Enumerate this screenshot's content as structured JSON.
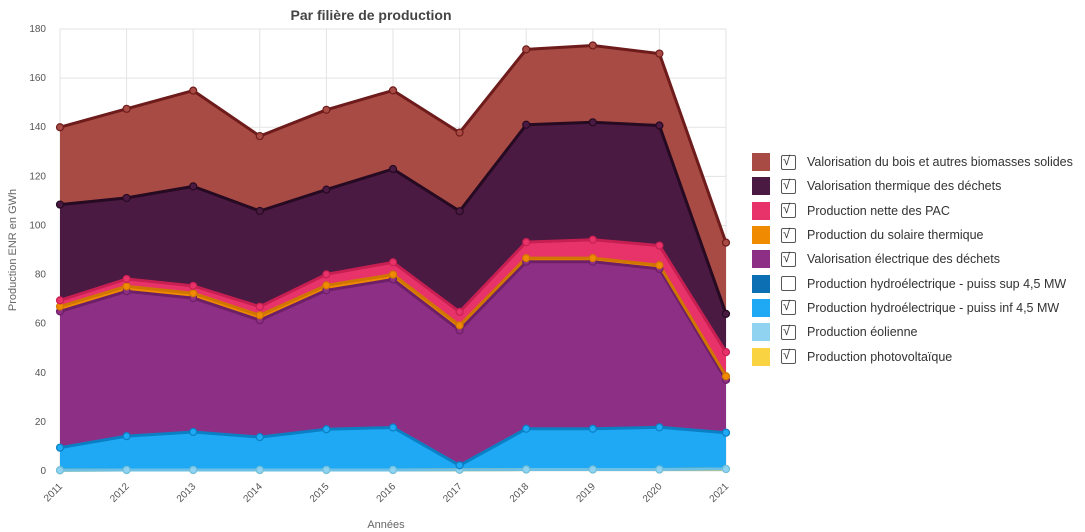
{
  "chart_data": {
    "type": "area",
    "stacked": true,
    "title": "Par filière de production",
    "xlabel": "Années",
    "ylabel": "Production ENR en GWh",
    "ylim": [
      0,
      180
    ],
    "yticks": [
      0,
      20,
      40,
      60,
      80,
      100,
      120,
      140,
      160,
      180
    ],
    "grid": true,
    "legend_position": "right",
    "categories": [
      "2011",
      "2012",
      "2013",
      "2014",
      "2015",
      "2016",
      "2017",
      "2018",
      "2019",
      "2020",
      "2021"
    ],
    "series": [
      {
        "name": "Production photovoltaïque",
        "color": "#f9d342",
        "line_color": "#d9a800",
        "checked": true,
        "values": [
          0.3,
          0.4,
          0.4,
          0.4,
          0.4,
          0.4,
          0.5,
          0.6,
          0.6,
          0.6,
          0.8
        ]
      },
      {
        "name": "Production éolienne",
        "color": "#8fd3f0",
        "line_color": "#6cc0e6",
        "checked": true,
        "values": [
          0,
          0,
          0,
          0,
          0,
          0,
          0,
          0,
          0,
          0,
          0
        ]
      },
      {
        "name": "Production hydroélectrique - puiss inf 4,5 MW",
        "color": "#1fa9f4",
        "line_color": "#0b7fc4",
        "checked": true,
        "values": [
          9.2,
          13.8,
          15.5,
          13.4,
          16.6,
          17.3,
          1.8,
          16.6,
          16.6,
          17.2,
          14.8
        ]
      },
      {
        "name": "Production hydroélectrique - puiss sup 4,5 MW",
        "color": "#0c6fb3",
        "line_color": "#0a5a90",
        "checked": false,
        "values": [
          0,
          0,
          0,
          0,
          0,
          0,
          0,
          0,
          0,
          0,
          0
        ]
      },
      {
        "name": "Valorisation électrique des déchets",
        "color": "#8e2f86",
        "line_color": "#6d1f67",
        "checked": true,
        "values": [
          55.5,
          59.0,
          54.5,
          47.6,
          56.6,
          60.3,
          55.0,
          68.0,
          68.0,
          64.5,
          21.5
        ]
      },
      {
        "name": "Production du solaire thermique",
        "color": "#f08a00",
        "line_color": "#d07600",
        "checked": true,
        "values": [
          2.0,
          2.0,
          2.0,
          2.0,
          2.0,
          2.0,
          2.0,
          1.5,
          1.5,
          1.5,
          1.5
        ]
      },
      {
        "name": "Production nette des PAC",
        "color": "#e8336a",
        "line_color": "#c81f52",
        "checked": true,
        "values": [
          2.5,
          3.0,
          3.0,
          3.5,
          4.5,
          5.0,
          5.5,
          6.5,
          7.5,
          8.0,
          9.8
        ]
      },
      {
        "name": "Valorisation thermique des déchets",
        "color": "#4a1a42",
        "line_color": "#260a22",
        "checked": true,
        "values": [
          39.0,
          33.0,
          40.5,
          39.0,
          34.5,
          38.0,
          41.0,
          47.8,
          47.8,
          48.9,
          15.6
        ]
      },
      {
        "name": "Valorisation du bois et autres biomasses solides",
        "color": "#a84b44",
        "line_color": "#6e1b1b",
        "checked": true,
        "values": [
          31.5,
          36.3,
          39.0,
          30.5,
          32.5,
          32.0,
          32.0,
          30.7,
          31.3,
          29.3,
          29.0
        ]
      }
    ]
  }
}
